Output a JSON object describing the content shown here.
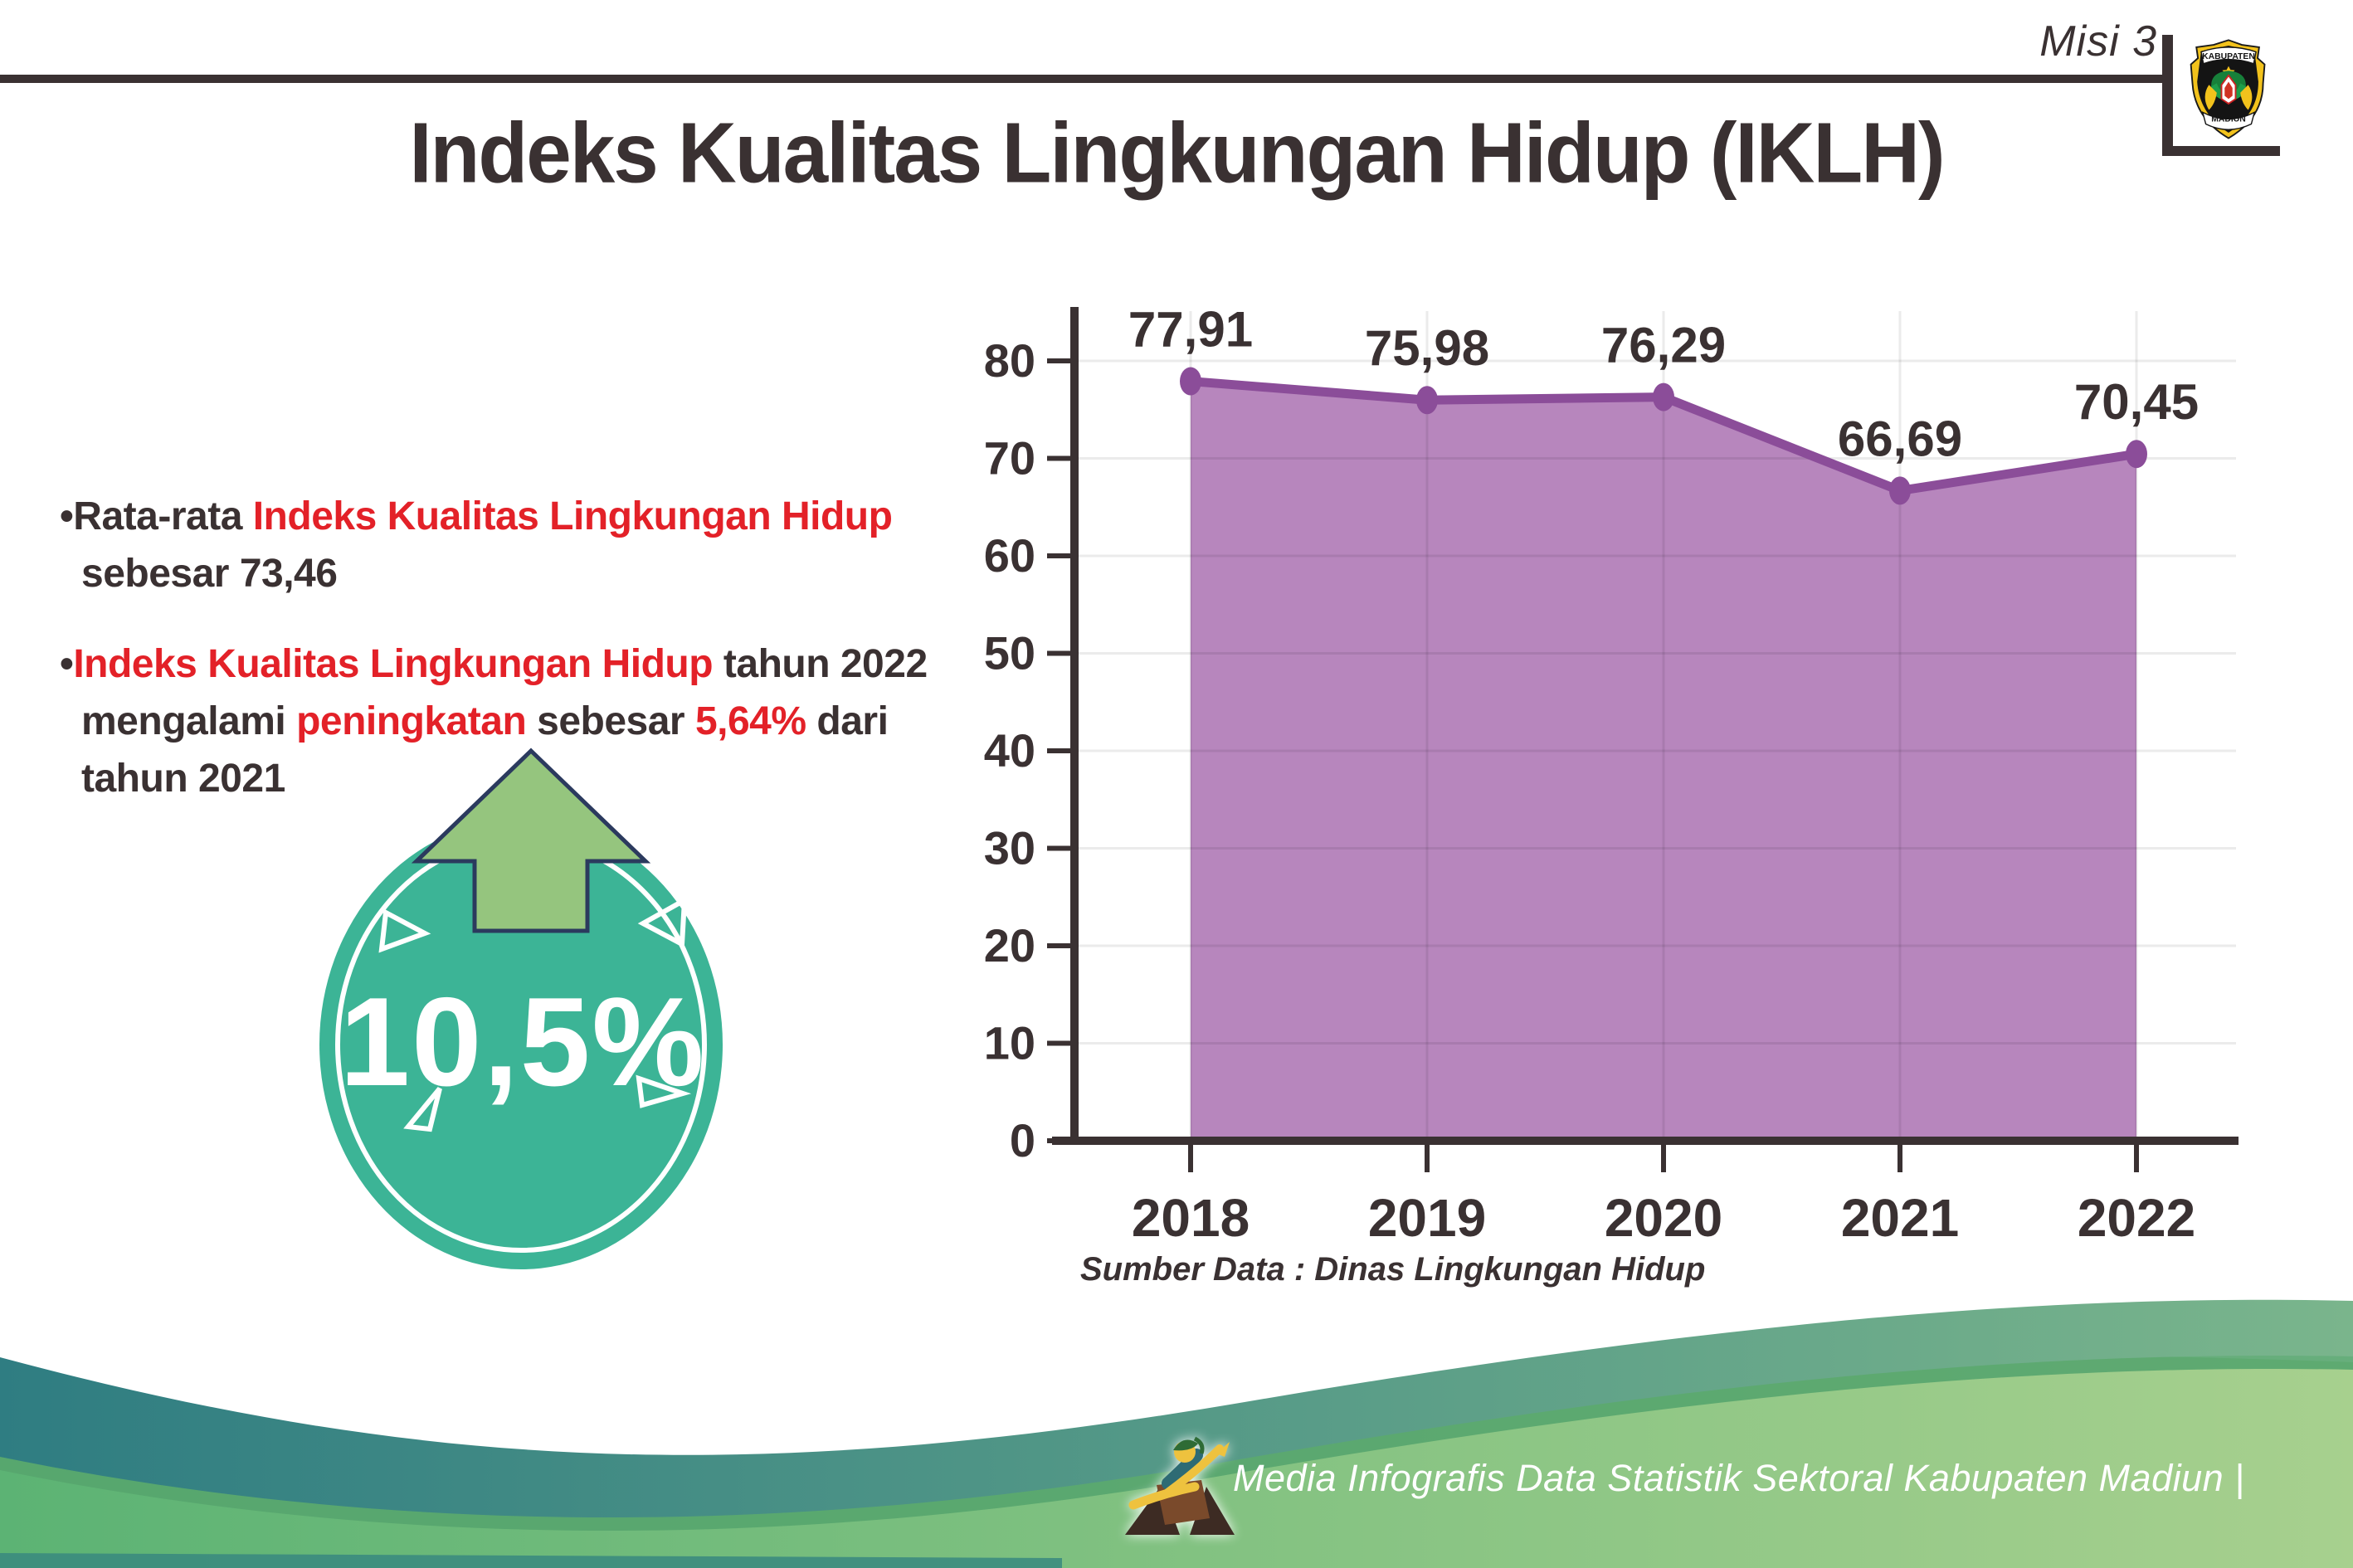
{
  "colors": {
    "dark_text": "#3a3132",
    "red_text": "#e32128",
    "area_fill": "#b786bd",
    "line_purple": "#8b4d99",
    "badge_teal": "#3cb496",
    "arrow_green": "#95c57e",
    "arrow_outline_navy": "#2b3a5e",
    "wave_teal_start": "#2f7d82",
    "wave_teal_end": "#7ab58c",
    "wave_green_start": "#5cb374",
    "wave_green_end": "#a7d08e",
    "grid_gray": "rgba(0,0,0,0.08)"
  },
  "header": {
    "misi_label": "Misi 3",
    "title": "Indeks Kualitas Lingkungan Hidup (IKLH)",
    "logo": {
      "top_text": "KABUPATEN",
      "bottom_text": "MADIUN"
    }
  },
  "bullets": [
    {
      "lines": [
        {
          "segments": [
            {
              "text": "•Rata-rata ",
              "color": "dark"
            },
            {
              "text": "Indeks Kualitas Lingkungan Hidup",
              "color": "red"
            }
          ]
        },
        {
          "segments": [
            {
              "text": "sebesar 73,46",
              "color": "dark"
            }
          ]
        }
      ]
    },
    {
      "lines": [
        {
          "segments": [
            {
              "text": "•",
              "color": "dark"
            },
            {
              "text": "Indeks Kualitas Lingkungan Hidup",
              "color": "red"
            },
            {
              "text": " tahun 2022",
              "color": "dark"
            }
          ]
        },
        {
          "segments": [
            {
              "text": "mengalami ",
              "color": "dark"
            },
            {
              "text": "peningkatan",
              "color": "red"
            },
            {
              "text": " sebesar ",
              "color": "dark"
            },
            {
              "text": "5,64%",
              "color": "red"
            },
            {
              "text": " dari",
              "color": "dark"
            }
          ]
        },
        {
          "segments": [
            {
              "text": "tahun 2021",
              "color": "dark"
            }
          ]
        }
      ]
    }
  ],
  "badge": {
    "value": "10,5%"
  },
  "chart_data": {
    "type": "area",
    "title": "",
    "xlabel": "",
    "ylabel": "",
    "categories": [
      "2018",
      "2019",
      "2020",
      "2021",
      "2022"
    ],
    "values": [
      77.91,
      75.98,
      76.29,
      66.69,
      70.45
    ],
    "value_labels": [
      "77,91",
      "75,98",
      "76,29",
      "66,69",
      "70,45"
    ],
    "ylim": [
      0,
      80
    ],
    "yticks": [
      0,
      10,
      20,
      30,
      40,
      50,
      60,
      70,
      80
    ],
    "grid": true,
    "legend": false
  },
  "source_note": "Sumber Data : Dinas Lingkungan Hidup",
  "footer": {
    "credit": "Media Infografis Data Statistik Sektoral Kabupaten Madiun |"
  }
}
